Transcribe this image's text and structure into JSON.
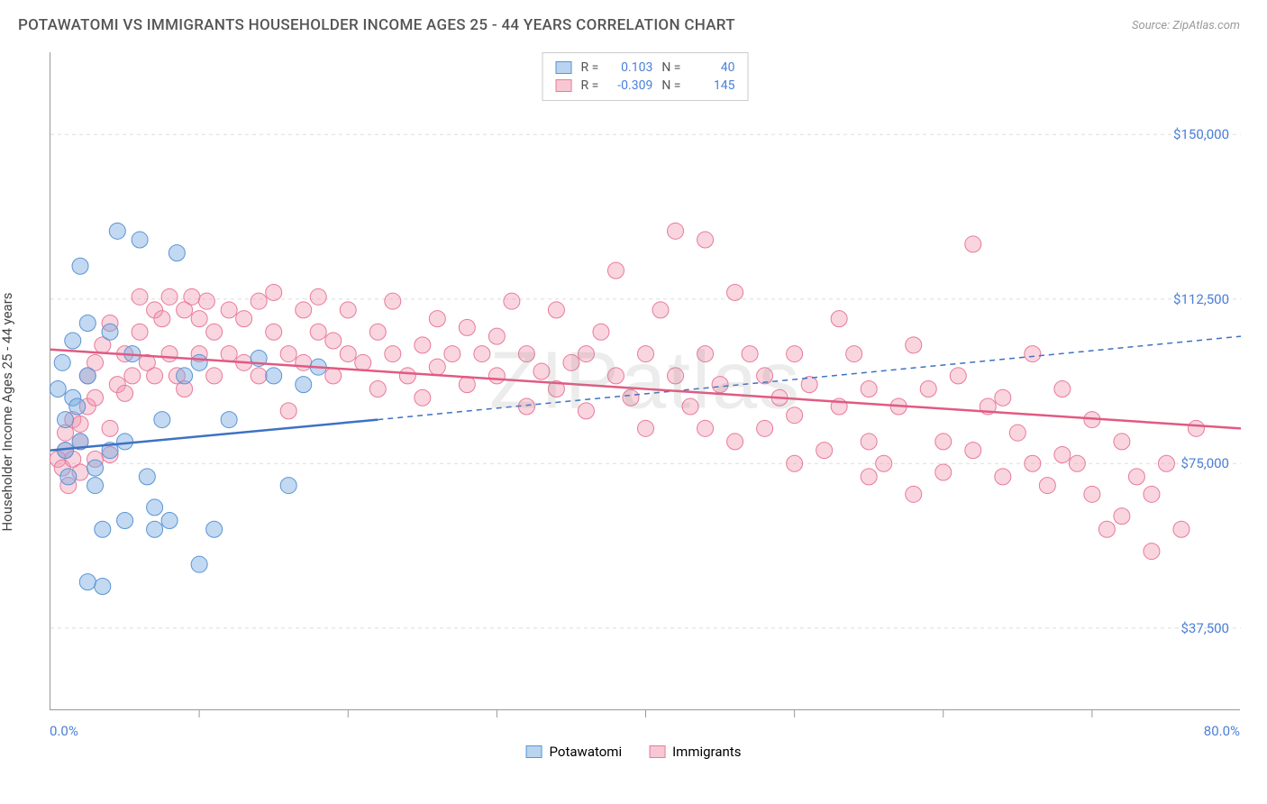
{
  "title": "POTAWATOMI VS IMMIGRANTS HOUSEHOLDER INCOME AGES 25 - 44 YEARS CORRELATION CHART",
  "source": "Source: ZipAtlas.com",
  "watermark": "ZIPatlas",
  "ylabel": "Householder Income Ages 25 - 44 years",
  "chart": {
    "type": "scatter",
    "xlim": [
      0,
      80
    ],
    "ylim": [
      18750,
      168750
    ],
    "xaxis_labels": {
      "min": "0.0%",
      "max": "80.0%"
    },
    "yaxis_ticks": [
      37500,
      75000,
      112500,
      150000
    ],
    "yaxis_labels": [
      "$37,500",
      "$75,000",
      "$112,500",
      "$150,000"
    ],
    "xtick_step": 10,
    "grid_color": "#dddddd",
    "grid_dash": "4,4",
    "background_color": "#ffffff",
    "marker_radius": 9,
    "marker_opacity": 0.45,
    "stats_legend": [
      {
        "swatch_fill": "#b8d4f0",
        "swatch_border": "#5a94d6",
        "r_label": "R =",
        "r": "0.103",
        "n_label": "N =",
        "n": "40"
      },
      {
        "swatch_fill": "#f7c8d4",
        "swatch_border": "#e87a9a",
        "r_label": "R =",
        "r": "-0.309",
        "n_label": "N =",
        "n": "145"
      }
    ],
    "bottom_legend": [
      {
        "swatch_fill": "#b8d4f0",
        "swatch_border": "#5a94d6",
        "label": "Potawatomi"
      },
      {
        "swatch_fill": "#f7c8d4",
        "swatch_border": "#e87a9a",
        "label": "Immigrants"
      }
    ],
    "series": [
      {
        "name": "Potawatomi",
        "marker_fill": "rgba(120,170,225,0.45)",
        "marker_stroke": "#5a94d6",
        "trend_stroke": "#3d72c4",
        "trend_width": 2.5,
        "trend_solid": {
          "x1": 0,
          "y1": 78000,
          "x2": 22,
          "y2": 85000
        },
        "trend_dash": {
          "x1": 22,
          "y1": 85000,
          "x2": 80,
          "y2": 104000
        },
        "points": [
          [
            0.5,
            92000
          ],
          [
            0.8,
            98000
          ],
          [
            1,
            78000
          ],
          [
            1,
            85000
          ],
          [
            1.2,
            72000
          ],
          [
            1.5,
            103000
          ],
          [
            1.5,
            90000
          ],
          [
            1.8,
            88000
          ],
          [
            2,
            120000
          ],
          [
            2,
            80000
          ],
          [
            2.5,
            107000
          ],
          [
            2.5,
            95000
          ],
          [
            3,
            74000
          ],
          [
            3,
            70000
          ],
          [
            3.5,
            47000
          ],
          [
            4,
            105000
          ],
          [
            4,
            78000
          ],
          [
            3.5,
            60000
          ],
          [
            5,
            62000
          ],
          [
            5,
            80000
          ],
          [
            5.5,
            100000
          ],
          [
            6,
            126000
          ],
          [
            6.5,
            72000
          ],
          [
            7,
            65000
          ],
          [
            7,
            60000
          ],
          [
            7.5,
            85000
          ],
          [
            8,
            62000
          ],
          [
            8.5,
            123000
          ],
          [
            9,
            95000
          ],
          [
            10,
            52000
          ],
          [
            10,
            98000
          ],
          [
            11,
            60000
          ],
          [
            12,
            85000
          ],
          [
            14,
            99000
          ],
          [
            15,
            95000
          ],
          [
            16,
            70000
          ],
          [
            17,
            93000
          ],
          [
            18,
            97000
          ],
          [
            2.5,
            48000
          ],
          [
            4.5,
            128000
          ]
        ]
      },
      {
        "name": "Immigrants",
        "marker_fill": "rgba(240,150,175,0.4)",
        "marker_stroke": "#e87a9a",
        "trend_stroke": "#e15a82",
        "trend_width": 2.5,
        "trend_solid": {
          "x1": 0,
          "y1": 101000,
          "x2": 80,
          "y2": 83000
        },
        "trend_dash": null,
        "points": [
          [
            0.5,
            76000
          ],
          [
            1,
            82000
          ],
          [
            1,
            78000
          ],
          [
            1.5,
            85000
          ],
          [
            2,
            80000
          ],
          [
            2,
            73000
          ],
          [
            2.5,
            88000
          ],
          [
            2.5,
            95000
          ],
          [
            3,
            90000
          ],
          [
            3,
            98000
          ],
          [
            3.5,
            102000
          ],
          [
            4,
            107000
          ],
          [
            4,
            83000
          ],
          [
            4.5,
            93000
          ],
          [
            5,
            100000
          ],
          [
            5,
            91000
          ],
          [
            5.5,
            95000
          ],
          [
            6,
            113000
          ],
          [
            6,
            105000
          ],
          [
            6.5,
            98000
          ],
          [
            7,
            110000
          ],
          [
            7,
            95000
          ],
          [
            7.5,
            108000
          ],
          [
            8,
            113000
          ],
          [
            8,
            100000
          ],
          [
            8.5,
            95000
          ],
          [
            9,
            92000
          ],
          [
            9,
            110000
          ],
          [
            9.5,
            113000
          ],
          [
            10,
            100000
          ],
          [
            10,
            108000
          ],
          [
            10.5,
            112000
          ],
          [
            11,
            95000
          ],
          [
            11,
            105000
          ],
          [
            12,
            100000
          ],
          [
            12,
            110000
          ],
          [
            13,
            98000
          ],
          [
            13,
            108000
          ],
          [
            14,
            112000
          ],
          [
            14,
            95000
          ],
          [
            15,
            105000
          ],
          [
            15,
            114000
          ],
          [
            16,
            100000
          ],
          [
            16,
            87000
          ],
          [
            17,
            110000
          ],
          [
            17,
            98000
          ],
          [
            18,
            105000
          ],
          [
            18,
            113000
          ],
          [
            19,
            95000
          ],
          [
            19,
            103000
          ],
          [
            20,
            100000
          ],
          [
            20,
            110000
          ],
          [
            21,
            98000
          ],
          [
            22,
            105000
          ],
          [
            22,
            92000
          ],
          [
            23,
            100000
          ],
          [
            23,
            112000
          ],
          [
            24,
            95000
          ],
          [
            25,
            102000
          ],
          [
            25,
            90000
          ],
          [
            26,
            108000
          ],
          [
            26,
            97000
          ],
          [
            27,
            100000
          ],
          [
            28,
            93000
          ],
          [
            28,
            106000
          ],
          [
            29,
            100000
          ],
          [
            30,
            95000
          ],
          [
            30,
            104000
          ],
          [
            31,
            112000
          ],
          [
            32,
            88000
          ],
          [
            32,
            100000
          ],
          [
            33,
            96000
          ],
          [
            34,
            110000
          ],
          [
            34,
            92000
          ],
          [
            35,
            98000
          ],
          [
            36,
            100000
          ],
          [
            36,
            87000
          ],
          [
            37,
            105000
          ],
          [
            38,
            95000
          ],
          [
            38,
            119000
          ],
          [
            39,
            90000
          ],
          [
            40,
            100000
          ],
          [
            40,
            83000
          ],
          [
            41,
            110000
          ],
          [
            42,
            95000
          ],
          [
            42,
            128000
          ],
          [
            43,
            88000
          ],
          [
            44,
            100000
          ],
          [
            44,
            126000
          ],
          [
            45,
            93000
          ],
          [
            46,
            114000
          ],
          [
            46,
            80000
          ],
          [
            47,
            100000
          ],
          [
            48,
            95000
          ],
          [
            48,
            83000
          ],
          [
            49,
            90000
          ],
          [
            50,
            100000
          ],
          [
            50,
            75000
          ],
          [
            51,
            93000
          ],
          [
            52,
            78000
          ],
          [
            53,
            108000
          ],
          [
            53,
            88000
          ],
          [
            54,
            100000
          ],
          [
            55,
            80000
          ],
          [
            55,
            92000
          ],
          [
            56,
            75000
          ],
          [
            57,
            88000
          ],
          [
            58,
            102000
          ],
          [
            58,
            68000
          ],
          [
            59,
            92000
          ],
          [
            60,
            80000
          ],
          [
            60,
            73000
          ],
          [
            61,
            95000
          ],
          [
            62,
            125000
          ],
          [
            62,
            78000
          ],
          [
            63,
            88000
          ],
          [
            64,
            90000
          ],
          [
            64,
            72000
          ],
          [
            65,
            82000
          ],
          [
            66,
            75000
          ],
          [
            66,
            100000
          ],
          [
            67,
            70000
          ],
          [
            68,
            77000
          ],
          [
            68,
            92000
          ],
          [
            69,
            75000
          ],
          [
            70,
            85000
          ],
          [
            70,
            68000
          ],
          [
            71,
            60000
          ],
          [
            72,
            63000
          ],
          [
            72,
            80000
          ],
          [
            73,
            72000
          ],
          [
            74,
            68000
          ],
          [
            74,
            55000
          ],
          [
            75,
            75000
          ],
          [
            76,
            60000
          ],
          [
            77,
            83000
          ],
          [
            0.8,
            74000
          ],
          [
            1.2,
            70000
          ],
          [
            1.5,
            76000
          ],
          [
            2,
            84000
          ],
          [
            3,
            76000
          ],
          [
            4,
            77000
          ],
          [
            44,
            83000
          ],
          [
            50,
            86000
          ],
          [
            55,
            72000
          ]
        ]
      }
    ]
  }
}
